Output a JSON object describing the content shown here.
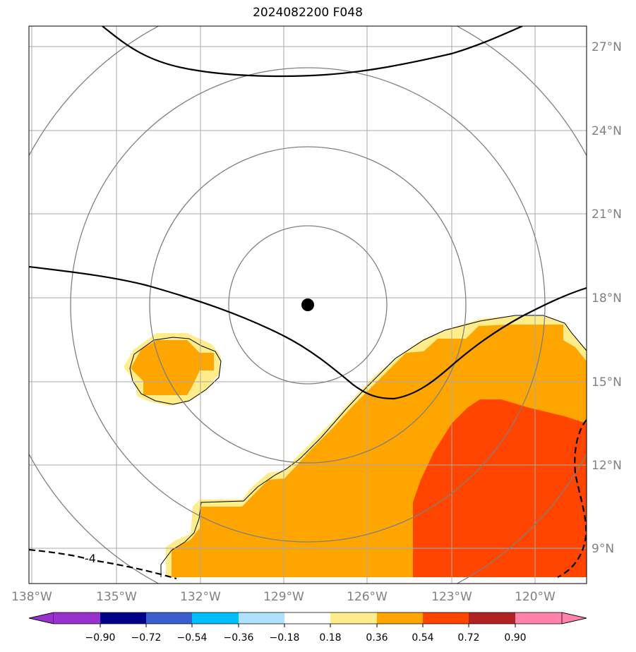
{
  "title": "2024082200 F048",
  "map": {
    "lon_labels": [
      "138°W",
      "135°W",
      "132°W",
      "129°W",
      "126°W",
      "123°W",
      "120°W"
    ],
    "lat_labels": [
      "27°N",
      "24°N",
      "21°N",
      "18°N",
      "15°N",
      "12°N",
      "9°N"
    ],
    "contour_label": "-4",
    "center_marker": "storm-center-dot"
  },
  "colorbar": {
    "labels": [
      "−0.90",
      "−0.72",
      "−0.54",
      "−0.36",
      "−0.18",
      "0.18",
      "0.36",
      "0.54",
      "0.72",
      "0.90"
    ],
    "colors": [
      "#9932cc",
      "#00008b",
      "#3a5fcd",
      "#00bfff",
      "#b0e2ff",
      "#ffffff",
      "#ffec8b",
      "#ffa500",
      "#ff4500",
      "#b22222",
      "#ff82ab"
    ]
  },
  "palette": {
    "light_yellow": "#ffec8b",
    "orange": "#ffa500",
    "red_orange": "#ff4500",
    "grid": "#a0a0a0",
    "rings": "#808080"
  }
}
